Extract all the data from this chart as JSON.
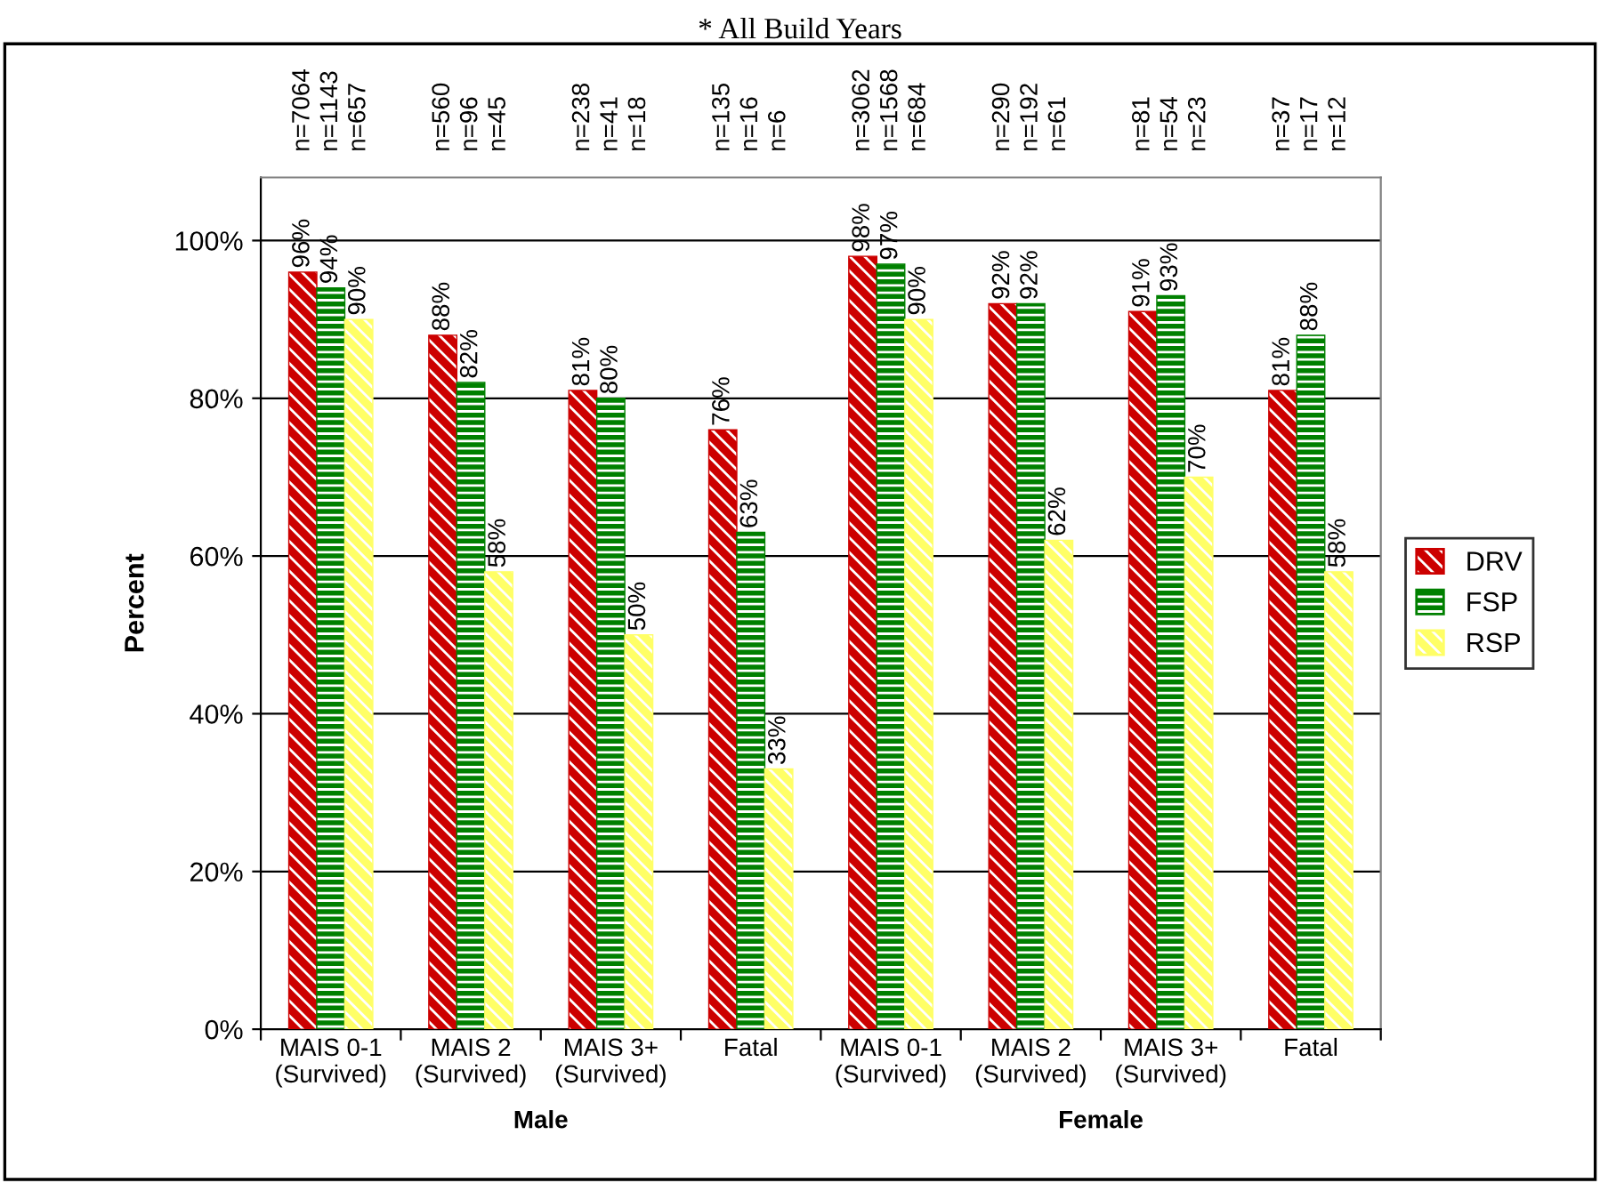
{
  "chart_data": {
    "type": "bar",
    "title": "* All Build Years",
    "ylabel": "Percent",
    "categories": [
      "MAIS 0-1\n(Survived)",
      "MAIS 2\n(Survived)",
      "MAIS 3+\n(Survived)",
      "Fatal",
      "MAIS 0-1\n(Survived)",
      "MAIS 2\n(Survived)",
      "MAIS 3+\n(Survived)",
      "Fatal"
    ],
    "series": [
      {
        "name": "DRV",
        "color": "#cc0000",
        "values": [
          96,
          88,
          81,
          76,
          98,
          92,
          91,
          81
        ],
        "value_labels": [
          "96%",
          "88%",
          "81%",
          "76%",
          "98%",
          "92%",
          "91%",
          "81%"
        ]
      },
      {
        "name": "FSP",
        "color": "#008000",
        "values": [
          94,
          82,
          80,
          63,
          97,
          92,
          93,
          88
        ],
        "value_labels": [
          "94%",
          "82%",
          "80%",
          "63%",
          "97%",
          "92%",
          "93%",
          "88%"
        ]
      },
      {
        "name": "RSP",
        "color": "#ffff66",
        "values": [
          90,
          58,
          50,
          33,
          90,
          62,
          70,
          58
        ],
        "value_labels": [
          "90%",
          "58%",
          "50%",
          "33%",
          "90%",
          "62%",
          "70%",
          "58%"
        ]
      }
    ],
    "ylim": [
      0,
      108
    ],
    "yticks": [
      {
        "value": 0,
        "label": "0%"
      },
      {
        "value": 20,
        "label": "20%"
      },
      {
        "value": 40,
        "label": "40%"
      },
      {
        "value": 60,
        "label": "60%"
      },
      {
        "value": 80,
        "label": "80%"
      },
      {
        "value": 100,
        "label": "100%"
      }
    ],
    "grid": "y",
    "legend": "right",
    "annotations": [
      "n=7064",
      "n=1143",
      "n=657",
      "n=560",
      "n=96",
      "n=45",
      "n=238",
      "n=41",
      "n=18",
      "n=135",
      "n=16",
      "n=6",
      "n=3062",
      "n=1568",
      "n=684",
      "n=290",
      "n=192",
      "n=61",
      "n=81",
      "n=54",
      "n=23",
      "n=37",
      "n=17",
      "n=12",
      "Male",
      "Female"
    ]
  }
}
